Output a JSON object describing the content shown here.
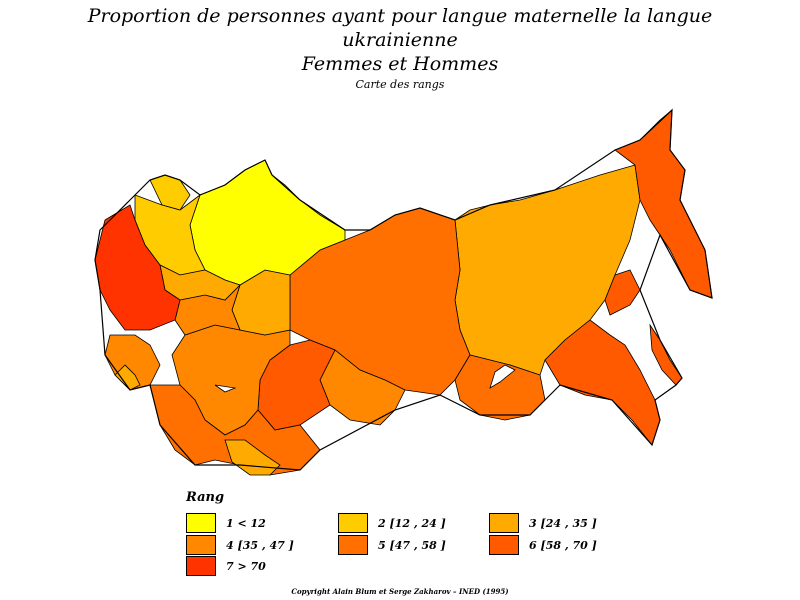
{
  "map": {
    "title_line1": "Proportion de personnes ayant pour langue maternelle la langue",
    "title_line2": "ukrainienne",
    "title_line3": "Femmes et Hommes",
    "subtitle": "Carte des rangs"
  },
  "legend": {
    "title": "Rang",
    "items": [
      {
        "label": "1  <  12",
        "color": "#ffff00"
      },
      {
        "label": "2  [12 ,  24 ]",
        "color": "#ffcc00"
      },
      {
        "label": "3  [24 ,  35 ]",
        "color": "#ffaa00"
      },
      {
        "label": "4  [35 ,  47 ]",
        "color": "#ff8800"
      },
      {
        "label": "5  [47 ,  58 ]",
        "color": "#ff7000"
      },
      {
        "label": "6  [58 ,  70 ]",
        "color": "#ff5a00"
      },
      {
        "label": "7  >  70",
        "color": "#ff3300"
      }
    ]
  },
  "footer": {
    "copyright": "Copyright Alain Blum et Serge Zakharov  –  INED (1995)"
  }
}
